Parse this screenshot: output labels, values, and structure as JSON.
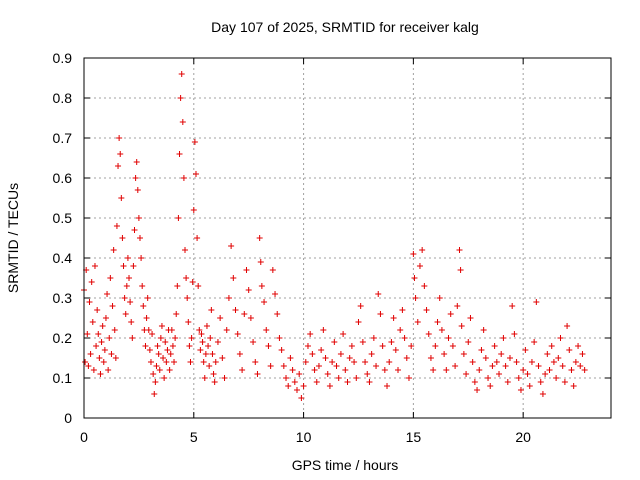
{
  "chart_data": {
    "type": "scatter",
    "title": "Day 107 of 2025, SRMTID for receiver kalg",
    "xlabel": "GPS time / hours",
    "ylabel": "SRMTID / TECUs",
    "xlim": [
      0,
      24
    ],
    "ylim": [
      0,
      0.9
    ],
    "xticks": [
      0,
      5,
      10,
      15,
      20
    ],
    "xtick_labels": [
      "0",
      "5",
      "10",
      "15",
      "20"
    ],
    "yticks": [
      0,
      0.1,
      0.2,
      0.3,
      0.4,
      0.5,
      0.6,
      0.7,
      0.8,
      0.9
    ],
    "ytick_labels": [
      "0",
      "0.1",
      "0.2",
      "0.3",
      "0.4",
      "0.5",
      "0.6",
      "0.7",
      "0.8",
      "0.9"
    ],
    "grid": true,
    "marker": "+",
    "color": "#e00000",
    "series": [
      {
        "name": "SRMTID",
        "points": [
          [
            0.0,
            0.32
          ],
          [
            0.05,
            0.14
          ],
          [
            0.1,
            0.37
          ],
          [
            0.15,
            0.21
          ],
          [
            0.2,
            0.13
          ],
          [
            0.25,
            0.29
          ],
          [
            0.3,
            0.16
          ],
          [
            0.35,
            0.34
          ],
          [
            0.4,
            0.24
          ],
          [
            0.45,
            0.12
          ],
          [
            0.5,
            0.38
          ],
          [
            0.55,
            0.18
          ],
          [
            0.6,
            0.27
          ],
          [
            0.65,
            0.21
          ],
          [
            0.7,
            0.15
          ],
          [
            0.75,
            0.11
          ],
          [
            0.8,
            0.19
          ],
          [
            0.85,
            0.23
          ],
          [
            0.9,
            0.14
          ],
          [
            0.95,
            0.17
          ],
          [
            1.0,
            0.25
          ],
          [
            1.05,
            0.31
          ],
          [
            1.1,
            0.12
          ],
          [
            1.15,
            0.2
          ],
          [
            1.2,
            0.35
          ],
          [
            1.25,
            0.16
          ],
          [
            1.3,
            0.28
          ],
          [
            1.35,
            0.42
          ],
          [
            1.4,
            0.22
          ],
          [
            1.45,
            0.15
          ],
          [
            1.5,
            0.48
          ],
          [
            1.55,
            0.63
          ],
          [
            1.6,
            0.7
          ],
          [
            1.65,
            0.66
          ],
          [
            1.7,
            0.55
          ],
          [
            1.75,
            0.45
          ],
          [
            1.8,
            0.38
          ],
          [
            1.85,
            0.3
          ],
          [
            1.9,
            0.26
          ],
          [
            1.95,
            0.33
          ],
          [
            2.0,
            0.4
          ],
          [
            2.05,
            0.35
          ],
          [
            2.1,
            0.29
          ],
          [
            2.15,
            0.24
          ],
          [
            2.2,
            0.2
          ],
          [
            2.25,
            0.38
          ],
          [
            2.3,
            0.47
          ],
          [
            2.35,
            0.6
          ],
          [
            2.4,
            0.64
          ],
          [
            2.45,
            0.57
          ],
          [
            2.5,
            0.5
          ],
          [
            2.55,
            0.45
          ],
          [
            2.6,
            0.4
          ],
          [
            2.65,
            0.33
          ],
          [
            2.7,
            0.28
          ],
          [
            2.75,
            0.22
          ],
          [
            2.8,
            0.18
          ],
          [
            2.85,
            0.25
          ],
          [
            2.9,
            0.3
          ],
          [
            2.95,
            0.22
          ],
          [
            3.0,
            0.17
          ],
          [
            3.05,
            0.14
          ],
          [
            3.1,
            0.21
          ],
          [
            3.15,
            0.11
          ],
          [
            3.2,
            0.06
          ],
          [
            3.25,
            0.09
          ],
          [
            3.3,
            0.13
          ],
          [
            3.35,
            0.18
          ],
          [
            3.4,
            0.16
          ],
          [
            3.45,
            0.12
          ],
          [
            3.5,
            0.2
          ],
          [
            3.55,
            0.23
          ],
          [
            3.6,
            0.15
          ],
          [
            3.65,
            0.1
          ],
          [
            3.7,
            0.19
          ],
          [
            3.75,
            0.14
          ],
          [
            3.8,
            0.17
          ],
          [
            3.85,
            0.22
          ],
          [
            3.9,
            0.12
          ],
          [
            3.95,
            0.16
          ],
          [
            4.0,
            0.22
          ],
          [
            4.05,
            0.18
          ],
          [
            4.1,
            0.14
          ],
          [
            4.15,
            0.2
          ],
          [
            4.2,
            0.26
          ],
          [
            4.25,
            0.33
          ],
          [
            4.3,
            0.5
          ],
          [
            4.35,
            0.66
          ],
          [
            4.4,
            0.8
          ],
          [
            4.45,
            0.86
          ],
          [
            4.5,
            0.74
          ],
          [
            4.55,
            0.6
          ],
          [
            4.6,
            0.42
          ],
          [
            4.65,
            0.35
          ],
          [
            4.7,
            0.3
          ],
          [
            4.75,
            0.24
          ],
          [
            4.8,
            0.18
          ],
          [
            4.85,
            0.14
          ],
          [
            4.9,
            0.2
          ],
          [
            4.95,
            0.34
          ],
          [
            5.0,
            0.52
          ],
          [
            5.05,
            0.69
          ],
          [
            5.1,
            0.61
          ],
          [
            5.15,
            0.45
          ],
          [
            5.2,
            0.33
          ],
          [
            5.25,
            0.22
          ],
          [
            5.3,
            0.17
          ],
          [
            5.35,
            0.21
          ],
          [
            5.4,
            0.19
          ],
          [
            5.45,
            0.14
          ],
          [
            5.5,
            0.1
          ],
          [
            5.55,
            0.16
          ],
          [
            5.6,
            0.23
          ],
          [
            5.65,
            0.18
          ],
          [
            5.7,
            0.13
          ],
          [
            5.75,
            0.2
          ],
          [
            5.8,
            0.27
          ],
          [
            5.85,
            0.16
          ],
          [
            5.9,
            0.11
          ],
          [
            5.95,
            0.09
          ],
          [
            6.0,
            0.14
          ],
          [
            6.1,
            0.19
          ],
          [
            6.2,
            0.25
          ],
          [
            6.3,
            0.15
          ],
          [
            6.4,
            0.1
          ],
          [
            6.5,
            0.22
          ],
          [
            6.6,
            0.3
          ],
          [
            6.7,
            0.43
          ],
          [
            6.8,
            0.35
          ],
          [
            6.9,
            0.27
          ],
          [
            7.0,
            0.21
          ],
          [
            7.1,
            0.16
          ],
          [
            7.2,
            0.12
          ],
          [
            7.3,
            0.26
          ],
          [
            7.4,
            0.37
          ],
          [
            7.5,
            0.32
          ],
          [
            7.6,
            0.25
          ],
          [
            7.7,
            0.19
          ],
          [
            7.8,
            0.14
          ],
          [
            7.9,
            0.11
          ],
          [
            8.0,
            0.45
          ],
          [
            8.05,
            0.39
          ],
          [
            8.1,
            0.33
          ],
          [
            8.2,
            0.29
          ],
          [
            8.3,
            0.22
          ],
          [
            8.4,
            0.18
          ],
          [
            8.5,
            0.13
          ],
          [
            8.6,
            0.37
          ],
          [
            8.7,
            0.31
          ],
          [
            8.8,
            0.26
          ],
          [
            8.9,
            0.2
          ],
          [
            9.0,
            0.17
          ],
          [
            9.1,
            0.13
          ],
          [
            9.2,
            0.1
          ],
          [
            9.3,
            0.08
          ],
          [
            9.4,
            0.15
          ],
          [
            9.5,
            0.12
          ],
          [
            9.6,
            0.09
          ],
          [
            9.7,
            0.07
          ],
          [
            9.8,
            0.11
          ],
          [
            9.9,
            0.05
          ],
          [
            10.0,
            0.08
          ],
          [
            10.1,
            0.14
          ],
          [
            10.2,
            0.18
          ],
          [
            10.3,
            0.21
          ],
          [
            10.4,
            0.16
          ],
          [
            10.5,
            0.12
          ],
          [
            10.6,
            0.09
          ],
          [
            10.7,
            0.13
          ],
          [
            10.8,
            0.17
          ],
          [
            10.9,
            0.22
          ],
          [
            11.0,
            0.15
          ],
          [
            11.1,
            0.11
          ],
          [
            11.2,
            0.08
          ],
          [
            11.3,
            0.14
          ],
          [
            11.4,
            0.19
          ],
          [
            11.5,
            0.13
          ],
          [
            11.6,
            0.1
          ],
          [
            11.7,
            0.16
          ],
          [
            11.8,
            0.21
          ],
          [
            11.9,
            0.12
          ],
          [
            12.0,
            0.09
          ],
          [
            12.1,
            0.15
          ],
          [
            12.2,
            0.18
          ],
          [
            12.3,
            0.14
          ],
          [
            12.4,
            0.1
          ],
          [
            12.5,
            0.24
          ],
          [
            12.6,
            0.28
          ],
          [
            12.7,
            0.19
          ],
          [
            12.8,
            0.14
          ],
          [
            12.9,
            0.11
          ],
          [
            13.0,
            0.09
          ],
          [
            13.1,
            0.16
          ],
          [
            13.2,
            0.2
          ],
          [
            13.3,
            0.13
          ],
          [
            13.4,
            0.31
          ],
          [
            13.5,
            0.26
          ],
          [
            13.6,
            0.18
          ],
          [
            13.7,
            0.12
          ],
          [
            13.8,
            0.08
          ],
          [
            13.9,
            0.14
          ],
          [
            14.0,
            0.19
          ],
          [
            14.1,
            0.25
          ],
          [
            14.2,
            0.17
          ],
          [
            14.3,
            0.12
          ],
          [
            14.4,
            0.22
          ],
          [
            14.5,
            0.27
          ],
          [
            14.6,
            0.2
          ],
          [
            14.7,
            0.15
          ],
          [
            14.8,
            0.1
          ],
          [
            14.9,
            0.18
          ],
          [
            15.0,
            0.41
          ],
          [
            15.05,
            0.35
          ],
          [
            15.1,
            0.3
          ],
          [
            15.2,
            0.24
          ],
          [
            15.3,
            0.38
          ],
          [
            15.4,
            0.42
          ],
          [
            15.5,
            0.33
          ],
          [
            15.6,
            0.27
          ],
          [
            15.7,
            0.21
          ],
          [
            15.8,
            0.15
          ],
          [
            15.9,
            0.12
          ],
          [
            16.0,
            0.18
          ],
          [
            16.1,
            0.24
          ],
          [
            16.2,
            0.3
          ],
          [
            16.3,
            0.22
          ],
          [
            16.4,
            0.16
          ],
          [
            16.5,
            0.12
          ],
          [
            16.6,
            0.2
          ],
          [
            16.7,
            0.26
          ],
          [
            16.8,
            0.18
          ],
          [
            16.9,
            0.13
          ],
          [
            17.0,
            0.28
          ],
          [
            17.1,
            0.42
          ],
          [
            17.15,
            0.37
          ],
          [
            17.2,
            0.23
          ],
          [
            17.3,
            0.16
          ],
          [
            17.4,
            0.11
          ],
          [
            17.5,
            0.19
          ],
          [
            17.6,
            0.25
          ],
          [
            17.7,
            0.14
          ],
          [
            17.8,
            0.09
          ],
          [
            17.9,
            0.07
          ],
          [
            18.0,
            0.12
          ],
          [
            18.1,
            0.17
          ],
          [
            18.2,
            0.22
          ],
          [
            18.3,
            0.15
          ],
          [
            18.4,
            0.1
          ],
          [
            18.5,
            0.08
          ],
          [
            18.6,
            0.13
          ],
          [
            18.7,
            0.18
          ],
          [
            18.8,
            0.14
          ],
          [
            18.9,
            0.11
          ],
          [
            19.0,
            0.16
          ],
          [
            19.1,
            0.2
          ],
          [
            19.2,
            0.13
          ],
          [
            19.3,
            0.09
          ],
          [
            19.4,
            0.15
          ],
          [
            19.5,
            0.28
          ],
          [
            19.6,
            0.21
          ],
          [
            19.7,
            0.14
          ],
          [
            19.8,
            0.1
          ],
          [
            19.9,
            0.07
          ],
          [
            20.0,
            0.12
          ],
          [
            20.1,
            0.17
          ],
          [
            20.2,
            0.11
          ],
          [
            20.3,
            0.08
          ],
          [
            20.4,
            0.14
          ],
          [
            20.5,
            0.19
          ],
          [
            20.6,
            0.29
          ],
          [
            20.7,
            0.13
          ],
          [
            20.8,
            0.09
          ],
          [
            20.9,
            0.06
          ],
          [
            21.0,
            0.11
          ],
          [
            21.1,
            0.16
          ],
          [
            21.2,
            0.12
          ],
          [
            21.3,
            0.18
          ],
          [
            21.4,
            0.14
          ],
          [
            21.5,
            0.1
          ],
          [
            21.6,
            0.15
          ],
          [
            21.7,
            0.2
          ],
          [
            21.8,
            0.13
          ],
          [
            21.9,
            0.09
          ],
          [
            22.0,
            0.23
          ],
          [
            22.1,
            0.17
          ],
          [
            22.2,
            0.12
          ],
          [
            22.3,
            0.08
          ],
          [
            22.4,
            0.14
          ],
          [
            22.5,
            0.18
          ],
          [
            22.6,
            0.13
          ],
          [
            22.7,
            0.16
          ],
          [
            22.8,
            0.12
          ]
        ]
      }
    ]
  }
}
